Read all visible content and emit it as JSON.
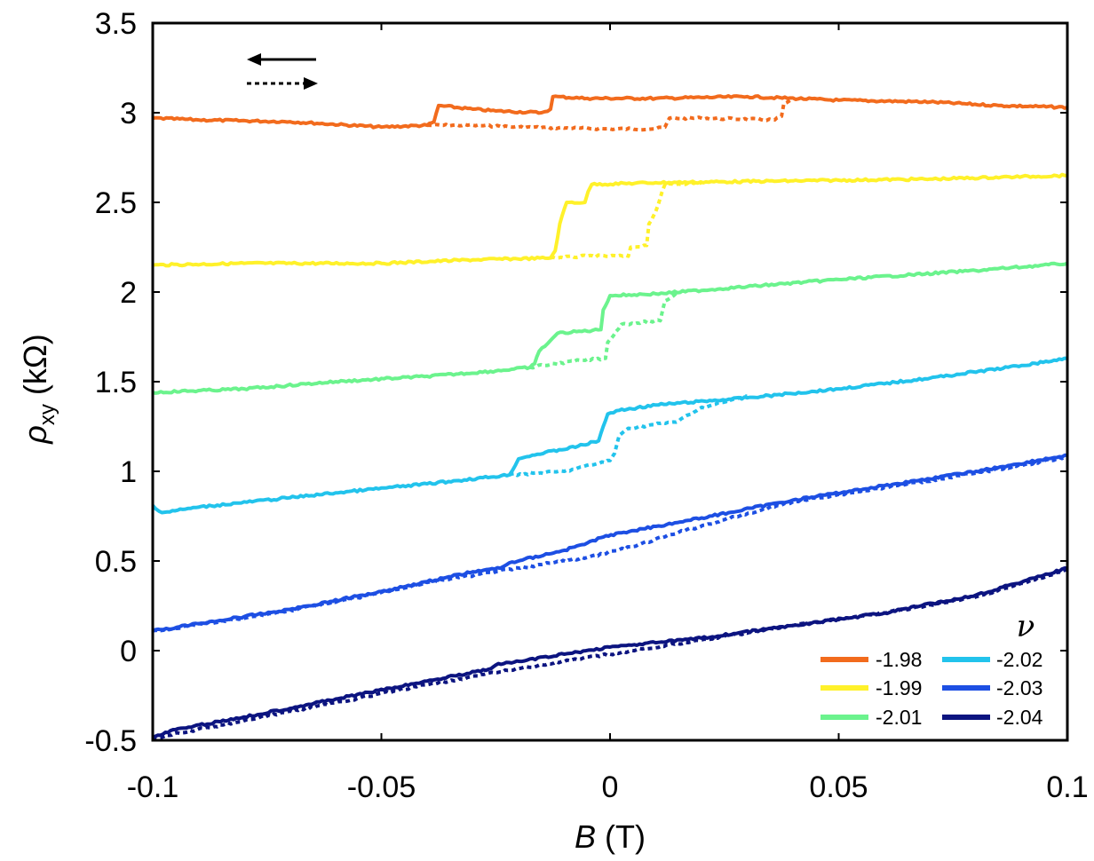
{
  "chart_data": {
    "type": "line",
    "title": "",
    "xlabel_var": "B",
    "xlabel_unit": "(T)",
    "ylabel_var": "ρ",
    "ylabel_sub": "xy",
    "ylabel_unit": "(kΩ)",
    "xlim": [
      -0.1,
      0.1
    ],
    "ylim": [
      -0.5,
      3.5
    ],
    "xticks": [
      -0.1,
      -0.05,
      0,
      0.05,
      0.1
    ],
    "xtick_labels": [
      "-0.1",
      "-0.05",
      "0",
      "0.05",
      "0.1"
    ],
    "yticks": [
      -0.5,
      0,
      0.5,
      1,
      1.5,
      2,
      2.5,
      3,
      3.5
    ],
    "ytick_labels": [
      "-0.5",
      "0",
      "0.5",
      "1",
      "1.5",
      "2",
      "2.5",
      "3",
      "3.5"
    ],
    "grid": false,
    "legend_title": "ν",
    "legend_position": "bottom-right",
    "sweep_indicator": {
      "solid": "sweep down (←)",
      "dotted": "sweep up (→)"
    },
    "series": [
      {
        "name": "-1.98",
        "color": "#F26B1D",
        "down": [
          [
            -0.1,
            2.97
          ],
          [
            -0.09,
            2.96
          ],
          [
            -0.07,
            2.95
          ],
          [
            -0.05,
            2.92
          ],
          [
            -0.04,
            2.93
          ],
          [
            -0.0385,
            2.95
          ],
          [
            -0.0375,
            3.04
          ],
          [
            -0.03,
            3.02
          ],
          [
            -0.025,
            3.01
          ],
          [
            -0.015,
            3.0
          ],
          [
            -0.013,
            3.02
          ],
          [
            -0.0125,
            3.09
          ],
          [
            -0.005,
            3.08
          ],
          [
            0.01,
            3.08
          ],
          [
            0.03,
            3.09
          ],
          [
            0.05,
            3.07
          ],
          [
            0.07,
            3.06
          ],
          [
            0.085,
            3.04
          ],
          [
            0.1,
            3.03
          ]
        ],
        "up": [
          [
            -0.04,
            2.93
          ],
          [
            -0.03,
            2.93
          ],
          [
            -0.02,
            2.92
          ],
          [
            0.0,
            2.91
          ],
          [
            0.01,
            2.91
          ],
          [
            0.012,
            2.92
          ],
          [
            0.013,
            2.97
          ],
          [
            0.02,
            2.97
          ],
          [
            0.036,
            2.96
          ],
          [
            0.0375,
            2.98
          ],
          [
            0.038,
            3.05
          ],
          [
            0.04,
            3.07
          ]
        ]
      },
      {
        "name": "-1.99",
        "color": "#FFF12A",
        "down": [
          [
            -0.1,
            2.15
          ],
          [
            -0.08,
            2.16
          ],
          [
            -0.05,
            2.16
          ],
          [
            -0.03,
            2.18
          ],
          [
            -0.013,
            2.19
          ],
          [
            -0.012,
            2.23
          ],
          [
            -0.011,
            2.38
          ],
          [
            -0.0095,
            2.5
          ],
          [
            -0.0055,
            2.5
          ],
          [
            -0.0048,
            2.56
          ],
          [
            -0.004,
            2.6
          ],
          [
            0.01,
            2.61
          ],
          [
            0.04,
            2.62
          ],
          [
            0.07,
            2.63
          ],
          [
            0.1,
            2.65
          ]
        ],
        "up": [
          [
            -0.013,
            2.19
          ],
          [
            -0.005,
            2.2
          ],
          [
            0.004,
            2.2
          ],
          [
            0.0045,
            2.25
          ],
          [
            0.008,
            2.26
          ],
          [
            0.0085,
            2.38
          ],
          [
            0.01,
            2.45
          ],
          [
            0.012,
            2.6
          ],
          [
            0.02,
            2.61
          ]
        ]
      },
      {
        "name": "-2.01",
        "color": "#6BF38D",
        "down": [
          [
            -0.1,
            1.44
          ],
          [
            -0.08,
            1.46
          ],
          [
            -0.06,
            1.5
          ],
          [
            -0.04,
            1.53
          ],
          [
            -0.025,
            1.56
          ],
          [
            -0.0175,
            1.58
          ],
          [
            -0.0165,
            1.6
          ],
          [
            -0.0155,
            1.67
          ],
          [
            -0.013,
            1.73
          ],
          [
            -0.0115,
            1.77
          ],
          [
            -0.002,
            1.79
          ],
          [
            -0.0015,
            1.9
          ],
          [
            0.0,
            1.98
          ],
          [
            0.01,
            1.99
          ],
          [
            0.03,
            2.03
          ],
          [
            0.05,
            2.07
          ],
          [
            0.08,
            2.12
          ],
          [
            0.1,
            2.16
          ]
        ],
        "up": [
          [
            -0.0175,
            1.58
          ],
          [
            -0.012,
            1.6
          ],
          [
            -0.006,
            1.62
          ],
          [
            -0.001,
            1.63
          ],
          [
            -0.0005,
            1.72
          ],
          [
            0.0025,
            1.82
          ],
          [
            0.011,
            1.84
          ],
          [
            0.012,
            1.95
          ],
          [
            0.015,
            2.0
          ]
        ]
      },
      {
        "name": "-2.02",
        "color": "#22C3EC",
        "down": [
          [
            -0.1,
            0.81
          ],
          [
            -0.098,
            0.77
          ],
          [
            -0.09,
            0.8
          ],
          [
            -0.06,
            0.88
          ],
          [
            -0.04,
            0.93
          ],
          [
            -0.022,
            0.98
          ],
          [
            -0.02,
            1.07
          ],
          [
            -0.017,
            1.09
          ],
          [
            -0.007,
            1.14
          ],
          [
            -0.0025,
            1.17
          ],
          [
            -0.0015,
            1.25
          ],
          [
            -0.0005,
            1.32
          ],
          [
            0.002,
            1.34
          ],
          [
            0.01,
            1.37
          ],
          [
            0.03,
            1.41
          ],
          [
            0.05,
            1.46
          ],
          [
            0.07,
            1.52
          ],
          [
            0.09,
            1.59
          ],
          [
            0.1,
            1.63
          ]
        ],
        "up": [
          [
            -0.022,
            0.98
          ],
          [
            -0.01,
            1.0
          ],
          [
            0.0,
            1.06
          ],
          [
            0.001,
            1.1
          ],
          [
            0.002,
            1.2
          ],
          [
            0.004,
            1.24
          ],
          [
            0.015,
            1.28
          ],
          [
            0.0195,
            1.35
          ],
          [
            0.03,
            1.42
          ]
        ]
      },
      {
        "name": "-2.03",
        "color": "#1D4FE3",
        "down": [
          [
            -0.1,
            0.11
          ],
          [
            -0.09,
            0.15
          ],
          [
            -0.07,
            0.23
          ],
          [
            -0.05,
            0.33
          ],
          [
            -0.03,
            0.44
          ],
          [
            -0.024,
            0.46
          ],
          [
            -0.022,
            0.49
          ],
          [
            -0.01,
            0.56
          ],
          [
            -0.005,
            0.6
          ],
          [
            -0.002,
            0.63
          ],
          [
            0.003,
            0.66
          ],
          [
            0.02,
            0.74
          ],
          [
            0.04,
            0.84
          ],
          [
            0.06,
            0.92
          ],
          [
            0.08,
            1.0
          ],
          [
            0.1,
            1.09
          ]
        ],
        "up": [
          [
            -0.1,
            0.11
          ],
          [
            -0.08,
            0.18
          ],
          [
            -0.06,
            0.27
          ],
          [
            -0.04,
            0.38
          ],
          [
            -0.025,
            0.44
          ],
          [
            -0.015,
            0.48
          ],
          [
            -0.005,
            0.52
          ],
          [
            0.005,
            0.58
          ],
          [
            0.015,
            0.66
          ],
          [
            0.025,
            0.73
          ],
          [
            0.04,
            0.83
          ],
          [
            0.06,
            0.91
          ],
          [
            0.08,
            0.99
          ],
          [
            0.1,
            1.08
          ]
        ]
      },
      {
        "name": "-2.04",
        "color": "#0C1480",
        "down": [
          [
            -0.1,
            -0.48
          ],
          [
            -0.095,
            -0.44
          ],
          [
            -0.08,
            -0.37
          ],
          [
            -0.06,
            -0.27
          ],
          [
            -0.04,
            -0.17
          ],
          [
            -0.026,
            -0.1
          ],
          [
            -0.025,
            -0.08
          ],
          [
            -0.01,
            -0.02
          ],
          [
            0.0,
            0.02
          ],
          [
            0.02,
            0.07
          ],
          [
            0.04,
            0.14
          ],
          [
            0.06,
            0.21
          ],
          [
            0.08,
            0.31
          ],
          [
            0.1,
            0.46
          ]
        ],
        "up": [
          [
            -0.1,
            -0.49
          ],
          [
            -0.08,
            -0.39
          ],
          [
            -0.06,
            -0.29
          ],
          [
            -0.04,
            -0.19
          ],
          [
            -0.02,
            -0.1
          ],
          [
            0.0,
            -0.02
          ],
          [
            0.02,
            0.06
          ],
          [
            0.04,
            0.14
          ],
          [
            0.06,
            0.21
          ],
          [
            0.08,
            0.3
          ],
          [
            0.1,
            0.45
          ]
        ]
      }
    ]
  }
}
